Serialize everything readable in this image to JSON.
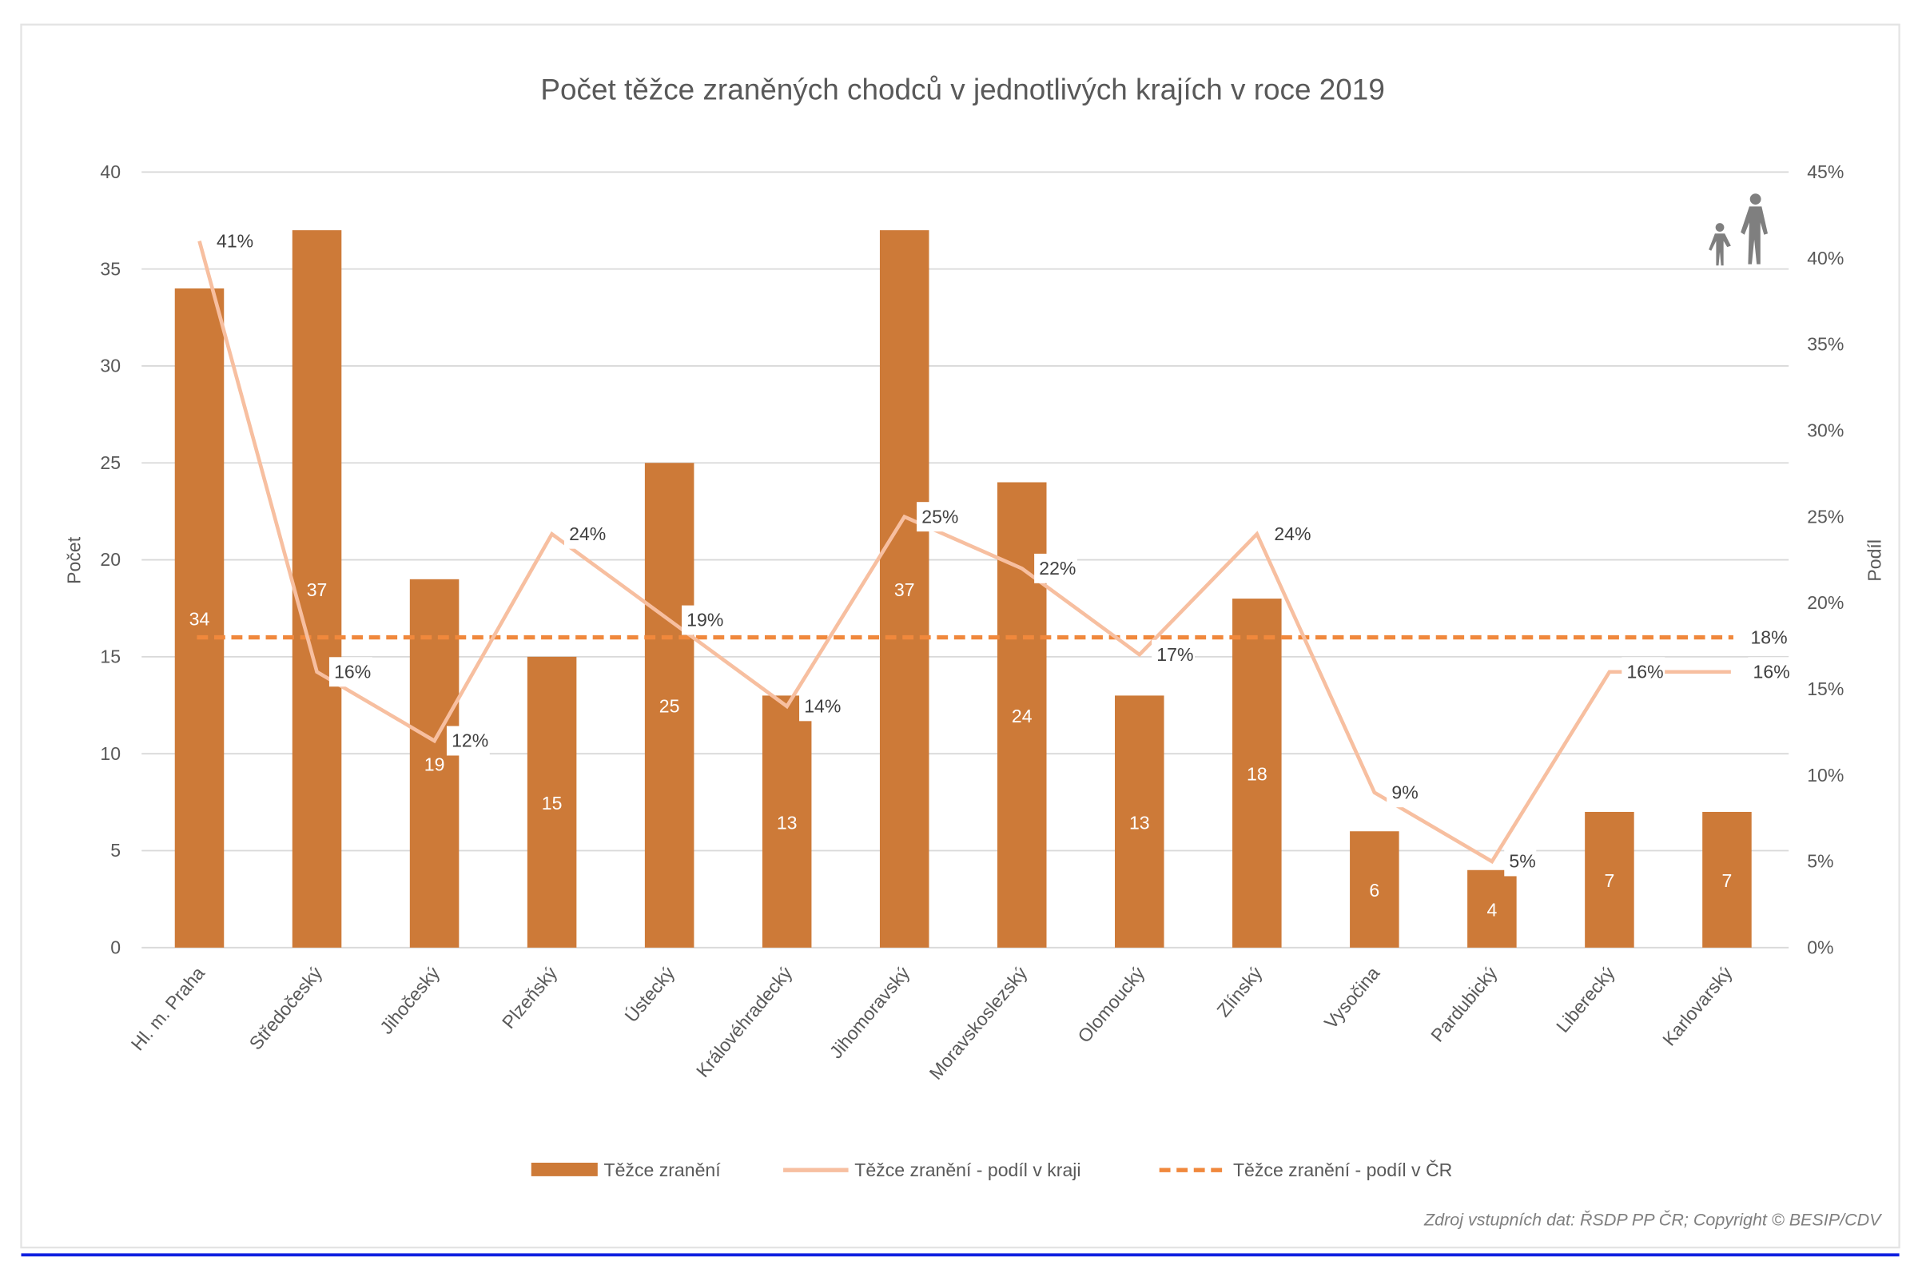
{
  "chart_data": {
    "type": "bar",
    "title": "Počet těžce zraněných chodců v jednotlivých krajích v roce 2019",
    "ylabel": "Počet",
    "y2label": "Podíl",
    "ylim": [
      0,
      40
    ],
    "y2lim": [
      0,
      45
    ],
    "yticks": [
      "0",
      "5",
      "10",
      "15",
      "20",
      "25",
      "30",
      "35",
      "40"
    ],
    "y2ticks": [
      "0%",
      "5%",
      "10%",
      "15%",
      "20%",
      "25%",
      "30%",
      "35%",
      "40%",
      "45%"
    ],
    "grid": true,
    "legend_placement": "bottom",
    "categories": [
      "Hl. m. Praha",
      "Středočeský",
      "Jihočeský",
      "Plzeňský",
      "Ústecký",
      "Královéhradecký",
      "Jihomoravský",
      "Moravskoslezský",
      "Olomoucký",
      "Zlínský",
      "Vysočina",
      "Pardubický",
      "Liberecký",
      "Karlovarský"
    ],
    "series": [
      {
        "name": "Těžce zranění",
        "type": "bar",
        "axis": "left",
        "color": "#cd7a38",
        "values": [
          34,
          37,
          19,
          15,
          25,
          13,
          37,
          24,
          13,
          18,
          6,
          4,
          7,
          7
        ],
        "labels": [
          "34",
          "37",
          "19",
          "15",
          "25",
          "13",
          "37",
          "24",
          "13",
          "18",
          "6",
          "4",
          "7",
          "7"
        ]
      },
      {
        "name": "Těžce zranění - podíl v kraji",
        "type": "line",
        "axis": "right",
        "color": "#f7bfa0",
        "values": [
          41,
          16,
          12,
          24,
          19,
          14,
          25,
          22,
          17,
          24,
          9,
          5,
          16,
          16
        ],
        "labels": [
          "41%",
          "16%",
          "12%",
          "24%",
          "19%",
          "14%",
          "25%",
          "22%",
          "17%",
          "24%",
          "9%",
          "5%",
          "16%",
          "16%"
        ]
      },
      {
        "name": "Těžce zranění - podíl v ČR",
        "type": "dashed-line",
        "axis": "right",
        "color": "#f0883c",
        "value": 18,
        "label": "18%"
      }
    ],
    "source": "Zdroj vstupních dat: ŘSDP PP ČR; Copyright © BESIP/CDV",
    "icon": "pedestrian-adult-child-icon"
  }
}
